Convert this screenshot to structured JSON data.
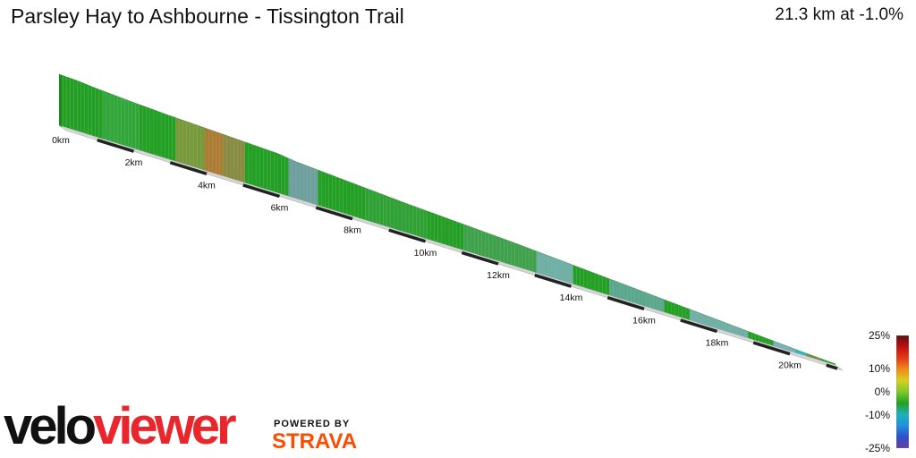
{
  "header": {
    "title": "Parsley Hay to Ashbourne - Tissington Trail",
    "summary": "21.3 km at -1.0%"
  },
  "branding": {
    "logo_part1": "velo",
    "logo_part2": "viewer",
    "powered_by": "POWERED BY",
    "strava": "STRAVA"
  },
  "legend": {
    "labels": [
      "25%",
      "10%",
      "0%",
      "-10%",
      "-25%"
    ],
    "colors": [
      "#5a1010",
      "#c01010",
      "#e43a1a",
      "#f08a18",
      "#d8d020",
      "#7ec82a",
      "#22a022",
      "#20b0b8",
      "#2090e0",
      "#3050c8",
      "#6a3aa8"
    ]
  },
  "chart_data": {
    "type": "area",
    "title": "Parsley Hay to Ashbourne - Tissington Trail",
    "distance_km": 21.3,
    "average_gradient_pct": -1.0,
    "x_unit": "km",
    "x_ticks": [
      "0km",
      "2km",
      "4km",
      "6km",
      "8km",
      "10km",
      "12km",
      "14km",
      "16km",
      "18km",
      "20km"
    ],
    "xlim": [
      0,
      21.3
    ],
    "relative_height": [
      [
        0,
        1.0
      ],
      [
        0.5,
        0.985
      ],
      [
        1.0,
        0.95
      ],
      [
        2.0,
        0.9
      ],
      [
        3.0,
        0.86
      ],
      [
        4.0,
        0.83
      ],
      [
        5.0,
        0.8
      ],
      [
        6.0,
        0.77
      ],
      [
        6.5,
        0.72
      ],
      [
        7.5,
        0.67
      ],
      [
        8.5,
        0.62
      ],
      [
        9.5,
        0.57
      ],
      [
        10.5,
        0.53
      ],
      [
        11.5,
        0.49
      ],
      [
        12.5,
        0.45
      ],
      [
        13.5,
        0.4
      ],
      [
        14.5,
        0.35
      ],
      [
        15.5,
        0.3
      ],
      [
        16.5,
        0.25
      ],
      [
        17.5,
        0.2
      ],
      [
        18.5,
        0.15
      ],
      [
        19.5,
        0.1
      ],
      [
        20.3,
        0.06
      ],
      [
        21.3,
        0.02
      ]
    ],
    "gradient_color_segments": [
      [
        0,
        "#22a022"
      ],
      [
        1.2,
        "#30a838"
      ],
      [
        2.2,
        "#22a022"
      ],
      [
        3.2,
        "#7a9a3a"
      ],
      [
        4.0,
        "#b07a30"
      ],
      [
        4.5,
        "#8a8a40"
      ],
      [
        5.0,
        "#22a022"
      ],
      [
        6.2,
        "#6fa0a0"
      ],
      [
        7.0,
        "#22a022"
      ],
      [
        8.3,
        "#2ea232"
      ],
      [
        10.0,
        "#22a022"
      ],
      [
        11.0,
        "#3da24a"
      ],
      [
        13.0,
        "#6fb0a8"
      ],
      [
        14.0,
        "#22a022"
      ],
      [
        15.0,
        "#5aa890"
      ],
      [
        16.5,
        "#22a022"
      ],
      [
        17.2,
        "#6fb0a8"
      ],
      [
        18.8,
        "#22a022"
      ],
      [
        19.6,
        "#7ab0c0"
      ],
      [
        20.2,
        "#20b8d0"
      ],
      [
        20.5,
        "#7a8a3a"
      ],
      [
        20.9,
        "#22a022"
      ]
    ],
    "gradient_scale": {
      "min": -25,
      "max": 25,
      "unit": "%"
    }
  }
}
